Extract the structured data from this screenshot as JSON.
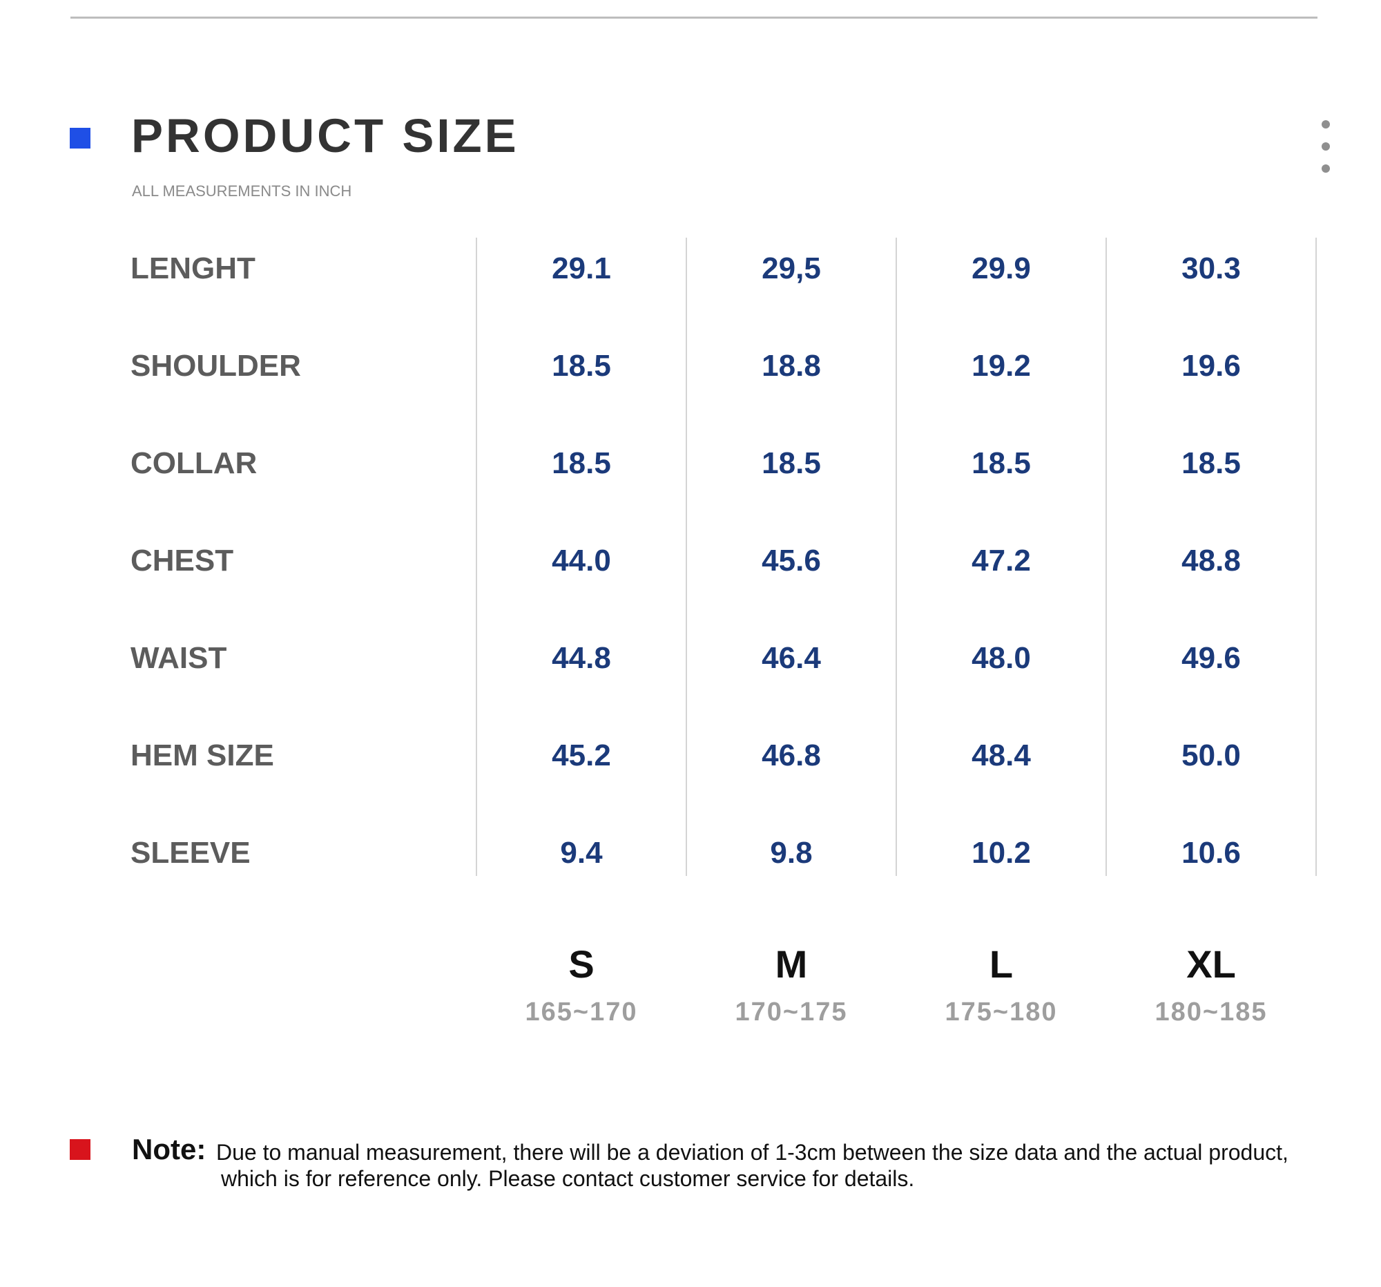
{
  "header": {
    "title": "PRODUCT SIZE",
    "subtitle": "ALL MEASUREMENTS IN INCH",
    "menu_icon": "more-vertical-icon",
    "marker_color": "#1f4fe6"
  },
  "size_chart": {
    "rows": [
      {
        "label": "LENGHT",
        "values": [
          "29.1",
          "29,5",
          "29.9",
          "30.3"
        ]
      },
      {
        "label": "SHOULDER",
        "values": [
          "18.5",
          "18.8",
          "19.2",
          "19.6"
        ]
      },
      {
        "label": "COLLAR",
        "values": [
          "18.5",
          "18.5",
          "18.5",
          "18.5"
        ]
      },
      {
        "label": "CHEST",
        "values": [
          "44.0",
          "45.6",
          "47.2",
          "48.8"
        ]
      },
      {
        "label": "WAIST",
        "values": [
          "44.8",
          "46.4",
          "48.0",
          "49.6"
        ]
      },
      {
        "label": "HEM SIZE",
        "values": [
          "45.2",
          "46.8",
          "48.4",
          "50.0"
        ]
      },
      {
        "label": "SLEEVE",
        "values": [
          "9.4",
          "9.8",
          "10.2",
          "10.6"
        ]
      }
    ],
    "sizes": [
      {
        "name": "S",
        "height": "165~170"
      },
      {
        "name": "M",
        "height": "170~175"
      },
      {
        "name": "L",
        "height": "175~180"
      },
      {
        "name": "XL",
        "height": "180~185"
      }
    ],
    "label_color": "#5c5c5c",
    "value_color": "#1b3a7a"
  },
  "note": {
    "label": "Note:",
    "line1": "Due to manual measurement, there will be a deviation of 1-3cm between the size data and the actual product,",
    "line2": "which is for reference only. Please contact customer service for details.",
    "marker_color": "#d8141c"
  }
}
